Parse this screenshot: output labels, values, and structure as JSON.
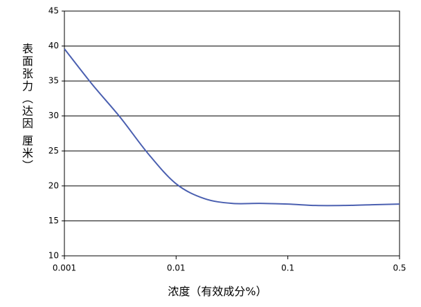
{
  "chart_data": {
    "type": "line",
    "x_label": "浓度（有效成分%）",
    "y_label": "表面张力（达因 厘米）",
    "categories": [
      "0.001",
      null,
      null,
      null,
      "0.01",
      null,
      null,
      null,
      "0.1",
      null,
      null,
      null,
      "0.5"
    ],
    "series": [
      {
        "name": "表面张力",
        "color": "#4a5fb0",
        "values": [
          39.6,
          34.5,
          29.8,
          24.6,
          20.3,
          18.2,
          17.5,
          17.5,
          17.4,
          17.2,
          17.2,
          17.3,
          17.4
        ]
      }
    ],
    "ylim": [
      10,
      45
    ],
    "yticks": [
      10,
      15,
      20,
      25,
      30,
      35,
      40,
      45
    ],
    "grid": true
  }
}
